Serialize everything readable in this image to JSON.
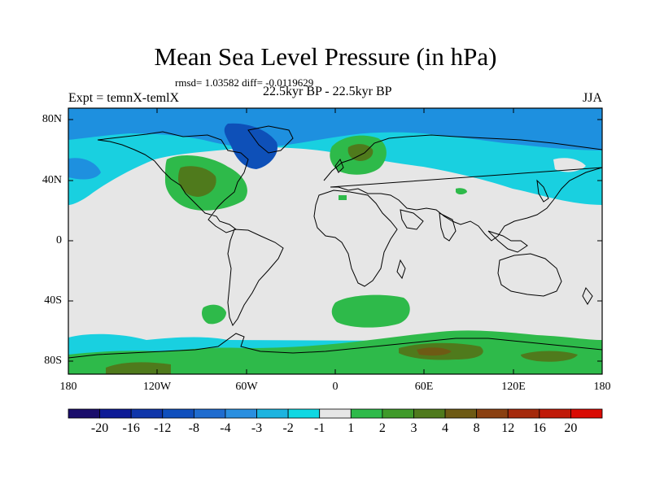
{
  "title": "Mean Sea Level Pressure (in hPa)",
  "stats_line": "rmsd= 1.03582 diff= -0.0119629",
  "period_line": "22.5kyr BP - 22.5kyr BP",
  "experiment": "Expt = temnX-temlX",
  "season": "JJA",
  "lat_labels": [
    "80N",
    "40N",
    "0",
    "40S",
    "80S"
  ],
  "lon_labels": [
    "180",
    "120W",
    "60W",
    "0",
    "60E",
    "120E",
    "180"
  ],
  "colorbar": {
    "colors": [
      "#1a0d6b",
      "#0d1a96",
      "#0f36aa",
      "#0f4fbd",
      "#1f6ccf",
      "#2a8fe0",
      "#1cb4e0",
      "#0fd8e3",
      "#e6e6e6",
      "#2eba4a",
      "#3f9a2a",
      "#4f7a1c",
      "#6e5a14",
      "#8a4010",
      "#a52a0c",
      "#c01a08",
      "#d90b04"
    ],
    "labels": [
      "-20",
      "-16",
      "-12",
      "-8",
      "-4",
      "-3",
      "-2",
      "-1",
      "1",
      "2",
      "3",
      "4",
      "8",
      "12",
      "16",
      "20"
    ]
  },
  "colors": {
    "neutral": "#e6e6e6",
    "cyan": "#19d0e0",
    "mid_blue": "#1e90df",
    "dark_blue": "#0e50b8",
    "green": "#2eba4a",
    "dark_green": "#4f7a1c",
    "brown": "#6e5a14",
    "coast": "#000000"
  }
}
